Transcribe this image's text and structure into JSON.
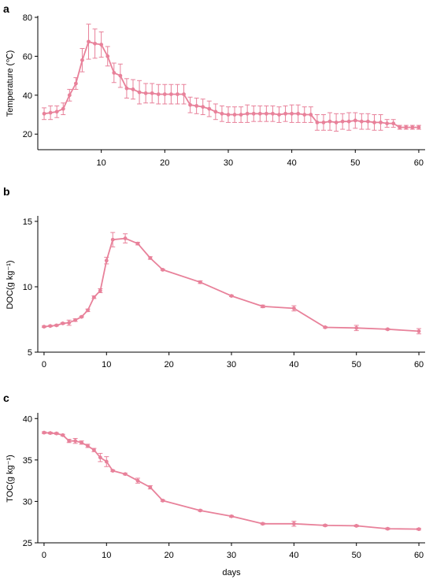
{
  "chart_data": [
    {
      "panel": "a",
      "type": "line",
      "ylabel": "Temperature (℃)",
      "xlabel": "",
      "xlim": [
        0,
        61
      ],
      "ylim": [
        12,
        80
      ],
      "xticks": [
        10,
        20,
        30,
        40,
        50,
        60
      ],
      "yticks": [
        20,
        40,
        60,
        80
      ],
      "color": "#e8819a",
      "series": [
        {
          "x": [
            1,
            2,
            3,
            4,
            5,
            6,
            7,
            8,
            9,
            10,
            11,
            12,
            13,
            14,
            15,
            16,
            17,
            18,
            19,
            20,
            21,
            22,
            23,
            24,
            25,
            26,
            27,
            28,
            29,
            30,
            31,
            32,
            33,
            34,
            35,
            36,
            37,
            38,
            39,
            40,
            41,
            42,
            43,
            44,
            45,
            46,
            47,
            48,
            49,
            50,
            51,
            52,
            53,
            54,
            55,
            56,
            57,
            58,
            59,
            60
          ],
          "y": [
            30.5,
            31,
            31.5,
            33,
            40,
            46,
            58,
            67.5,
            66.5,
            66,
            60,
            51.5,
            50,
            43.5,
            43,
            41.5,
            41,
            41,
            40.5,
            40.5,
            40.5,
            40.5,
            40.5,
            35,
            34.5,
            34,
            33,
            31.5,
            30.5,
            30,
            30,
            30,
            30.5,
            30.5,
            30.5,
            30.5,
            30.5,
            30,
            30.5,
            30.5,
            30.5,
            30,
            30,
            26,
            26,
            26.5,
            26,
            26.5,
            26.5,
            27,
            26.5,
            26.5,
            26,
            26,
            25.5,
            25.5,
            23.5,
            23.5,
            23.5,
            23.5
          ],
          "err": [
            3,
            3.5,
            3,
            3,
            3,
            3,
            6,
            9,
            7.5,
            6.5,
            5,
            5,
            6,
            5,
            5,
            6,
            5,
            5,
            5,
            5,
            5,
            5,
            5,
            4,
            4,
            4,
            4,
            4,
            4,
            4,
            4,
            4,
            4.5,
            4,
            4,
            4,
            4,
            4,
            4,
            4.5,
            4.5,
            4,
            4,
            4,
            4,
            4.5,
            4.5,
            4,
            4.5,
            4,
            4,
            4,
            4,
            4,
            2,
            2,
            1,
            1,
            1,
            1
          ]
        }
      ]
    },
    {
      "panel": "b",
      "type": "line",
      "ylabel": "DOC(g kg⁻¹)",
      "xlabel": "",
      "xlim": [
        -1,
        61
      ],
      "ylim": [
        5,
        15.3
      ],
      "xticks": [
        0,
        10,
        20,
        30,
        40,
        50,
        60
      ],
      "yticks": [
        5,
        10,
        15
      ],
      "color": "#e8819a",
      "series": [
        {
          "x": [
            0,
            1,
            2,
            3,
            4,
            5,
            6,
            7,
            8,
            9,
            10,
            11,
            13,
            15,
            17,
            19,
            25,
            30,
            35,
            40,
            45,
            50,
            55,
            60
          ],
          "y": [
            6.95,
            7,
            7.05,
            7.2,
            7.25,
            7.45,
            7.7,
            8.2,
            9.2,
            9.7,
            12,
            13.6,
            13.7,
            13.3,
            12.2,
            11.3,
            10.35,
            9.3,
            8.5,
            8.35,
            6.9,
            6.85,
            6.75,
            6.6
          ],
          "err": [
            0.05,
            0.05,
            0.05,
            0.05,
            0.2,
            0.1,
            0.05,
            0.1,
            0.1,
            0.15,
            0.25,
            0.55,
            0.35,
            0.1,
            0.1,
            0.05,
            0.1,
            0.05,
            0.1,
            0.2,
            0.05,
            0.2,
            0.05,
            0.2
          ]
        }
      ]
    },
    {
      "panel": "c",
      "type": "line",
      "ylabel": "TOC(g kg⁻¹)",
      "xlabel": "days",
      "xlim": [
        -1,
        61
      ],
      "ylim": [
        25,
        40.5
      ],
      "xticks": [
        0,
        10,
        20,
        30,
        40,
        50,
        60
      ],
      "yticks": [
        25,
        30,
        35,
        40
      ],
      "color": "#e8819a",
      "series": [
        {
          "x": [
            0,
            1,
            2,
            3,
            4,
            5,
            6,
            7,
            8,
            9,
            10,
            11,
            13,
            15,
            17,
            19,
            25,
            30,
            35,
            40,
            45,
            50,
            55,
            60
          ],
          "y": [
            38.3,
            38.25,
            38.2,
            38,
            37.3,
            37.3,
            37.1,
            36.7,
            36.2,
            35.3,
            34.8,
            33.7,
            33.3,
            32.5,
            31.7,
            30.1,
            28.9,
            28.2,
            27.3,
            27.3,
            27.1,
            27.05,
            26.7,
            26.65
          ],
          "err": [
            0.1,
            0.1,
            0.1,
            0.1,
            0.2,
            0.3,
            0.2,
            0.2,
            0.2,
            0.5,
            0.6,
            0.1,
            0.1,
            0.3,
            0.2,
            0.1,
            0.1,
            0.1,
            0.1,
            0.3,
            0.1,
            0.1,
            0.1,
            0.1
          ]
        }
      ]
    }
  ]
}
